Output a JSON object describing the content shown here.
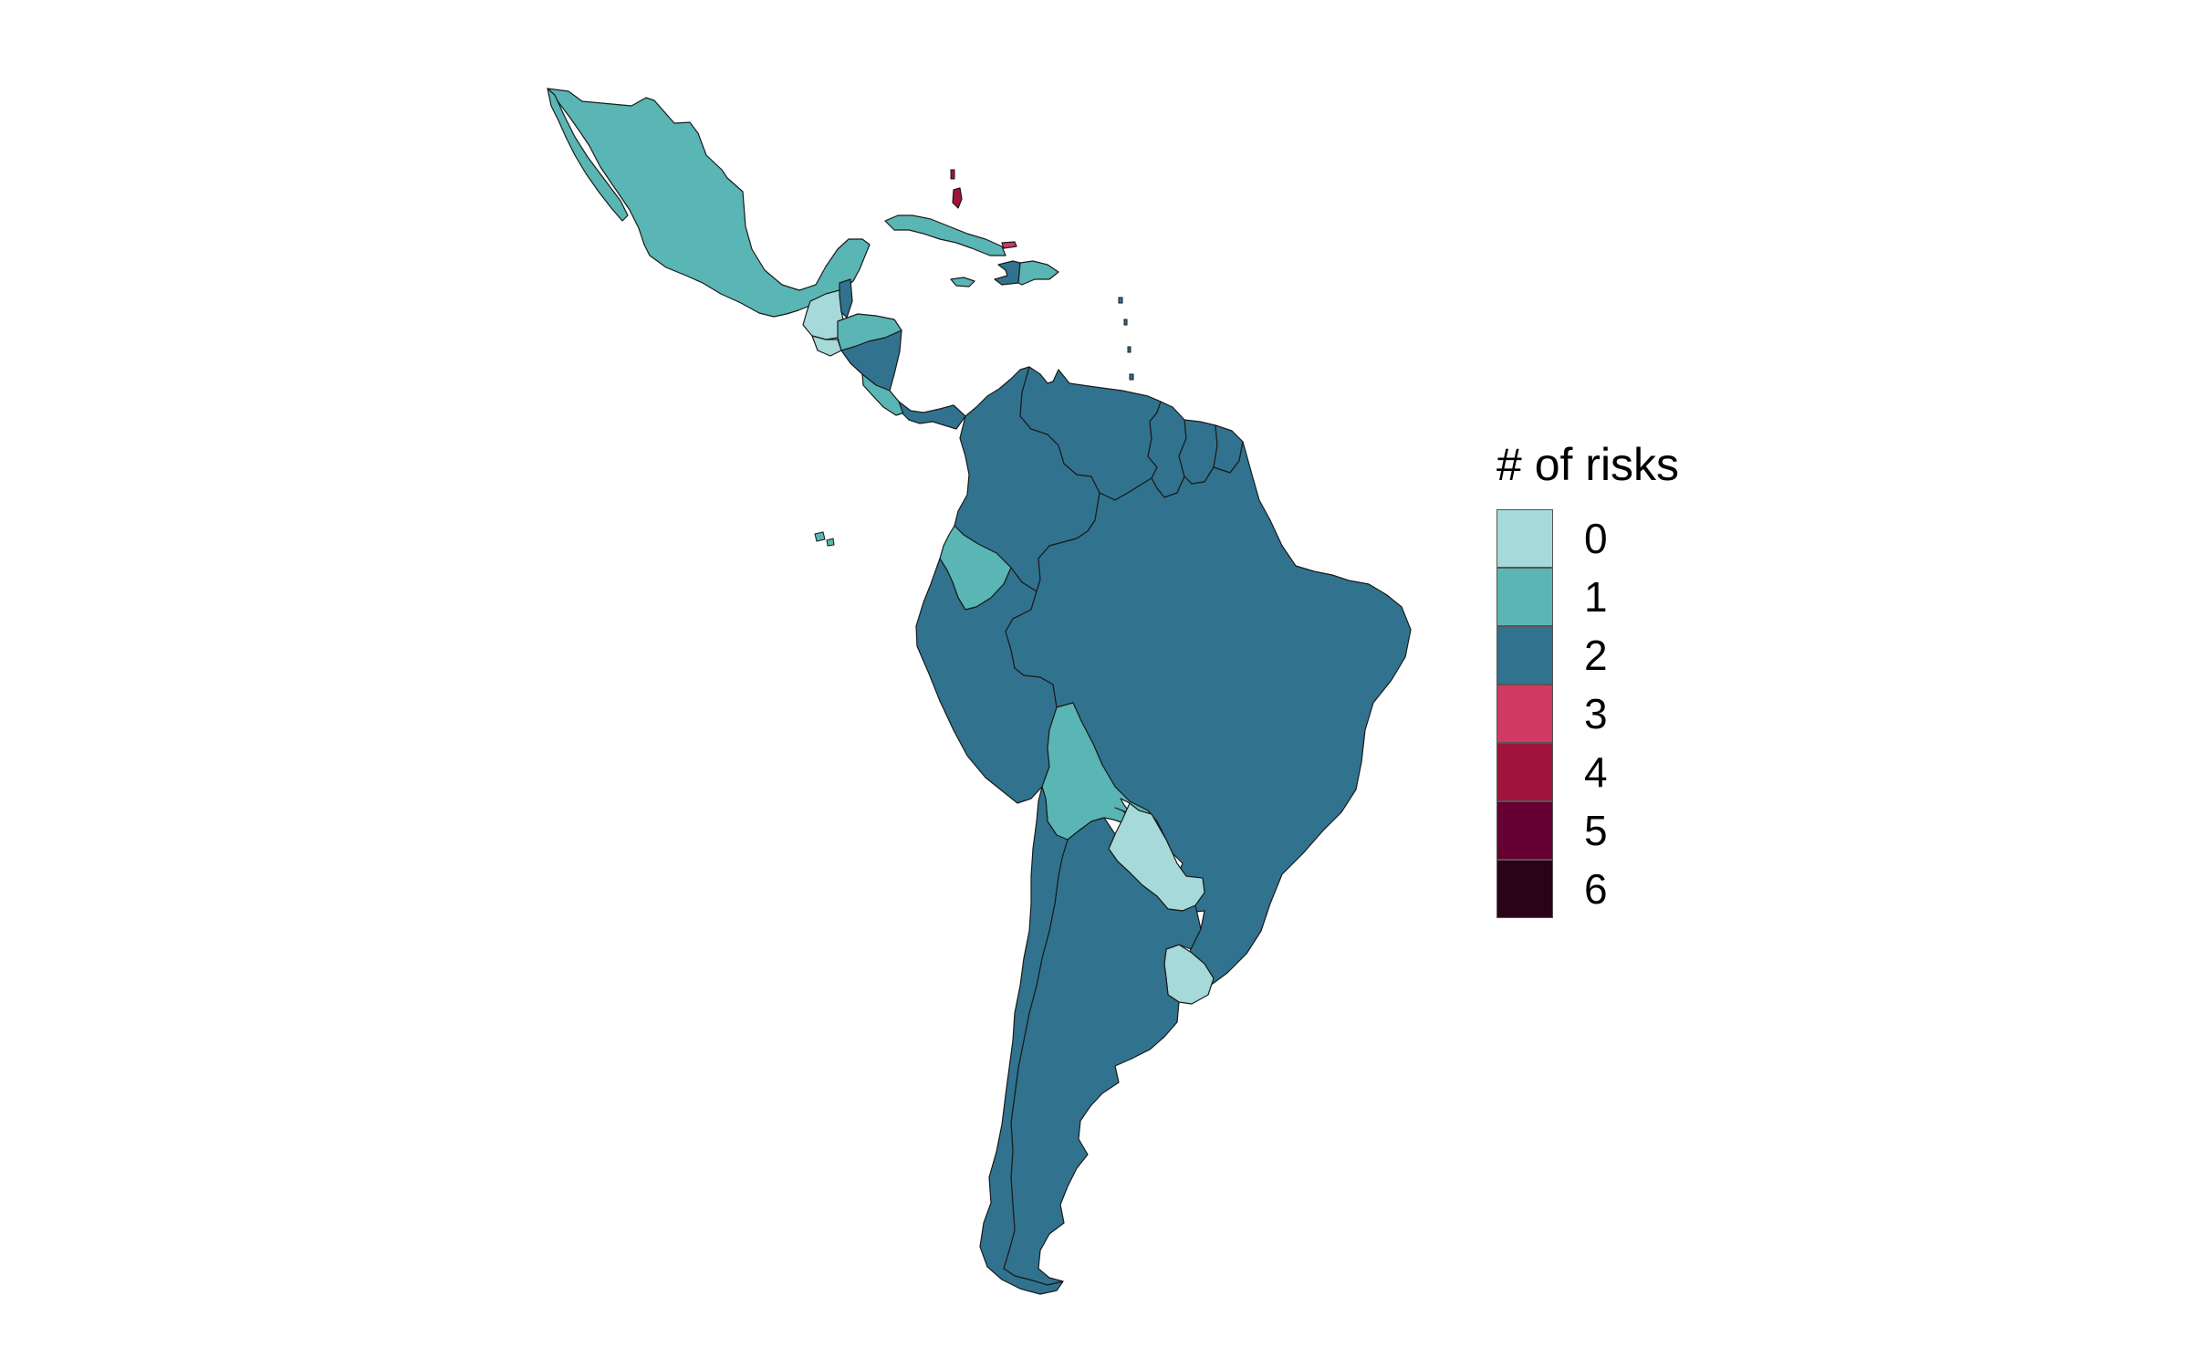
{
  "legend": {
    "title": "# of risks",
    "items": [
      {
        "label": "0",
        "color": "#a6d9d9"
      },
      {
        "label": "1",
        "color": "#5ab5b5"
      },
      {
        "label": "2",
        "color": "#31738f"
      },
      {
        "label": "3",
        "color": "#cf3a63"
      },
      {
        "label": "4",
        "color": "#a0143e"
      },
      {
        "label": "5",
        "color": "#660033"
      },
      {
        "label": "6",
        "color": "#2b0318"
      }
    ]
  },
  "countries": [
    {
      "id": "mexico",
      "risks": 1
    },
    {
      "id": "guatemala",
      "risks": 0
    },
    {
      "id": "belize",
      "risks": 2
    },
    {
      "id": "el-salvador",
      "risks": 0
    },
    {
      "id": "honduras",
      "risks": 1
    },
    {
      "id": "nicaragua",
      "risks": 2
    },
    {
      "id": "costa-rica",
      "risks": 1
    },
    {
      "id": "panama",
      "risks": 2
    },
    {
      "id": "cuba",
      "risks": 1
    },
    {
      "id": "jamaica",
      "risks": 1
    },
    {
      "id": "haiti",
      "risks": 2
    },
    {
      "id": "dominican-republic",
      "risks": 1
    },
    {
      "id": "bahamas",
      "risks": 4
    },
    {
      "id": "puerto-rico",
      "risks": 3
    },
    {
      "id": "colombia",
      "risks": 2
    },
    {
      "id": "venezuela",
      "risks": 2
    },
    {
      "id": "guyana",
      "risks": 2
    },
    {
      "id": "suriname",
      "risks": 2
    },
    {
      "id": "french-guiana",
      "risks": 2
    },
    {
      "id": "ecuador",
      "risks": 1
    },
    {
      "id": "peru",
      "risks": 2
    },
    {
      "id": "brazil",
      "risks": 2
    },
    {
      "id": "bolivia",
      "risks": 1
    },
    {
      "id": "paraguay",
      "risks": 0
    },
    {
      "id": "uruguay",
      "risks": 0
    },
    {
      "id": "chile",
      "risks": 2
    },
    {
      "id": "argentina",
      "risks": 2
    }
  ]
}
